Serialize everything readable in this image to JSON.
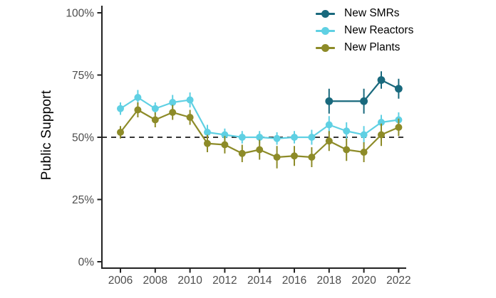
{
  "y_axis_title": "Public Support",
  "colors": {
    "axis": "#222222",
    "tick_label": "#4d4d4d",
    "reference_line": "#1a1a1a",
    "background": "#ffffff"
  },
  "chart_data": {
    "type": "line",
    "title": "",
    "xlabel": "",
    "ylabel": "Public Support",
    "ylim": [
      0,
      100
    ],
    "xlim": [
      2005,
      2023
    ],
    "grid": false,
    "legend_position": "top-right",
    "y_ticks": [
      {
        "value": 0,
        "label": "0%"
      },
      {
        "value": 25,
        "label": "25%"
      },
      {
        "value": 50,
        "label": "50%"
      },
      {
        "value": 75,
        "label": "75%"
      },
      {
        "value": 100,
        "label": "100%"
      }
    ],
    "x_ticks": [
      {
        "value": 2006,
        "label": "2006"
      },
      {
        "value": 2008,
        "label": "2008"
      },
      {
        "value": 2010,
        "label": "2010"
      },
      {
        "value": 2012,
        "label": "2012"
      },
      {
        "value": 2014,
        "label": "2014"
      },
      {
        "value": 2016,
        "label": "2016"
      },
      {
        "value": 2018,
        "label": "2018"
      },
      {
        "value": 2020,
        "label": "2020"
      },
      {
        "value": 2022,
        "label": "2022"
      }
    ],
    "reference_line": {
      "value": 50,
      "style": "dashed"
    },
    "series": [
      {
        "name": "New SMRs",
        "color": "#19697d",
        "x": [
          2018,
          2020,
          2021,
          2022
        ],
        "y": [
          64.5,
          64.5,
          73,
          69.5
        ],
        "err": [
          5,
          5,
          3.5,
          4
        ]
      },
      {
        "name": "New Reactors",
        "color": "#5fd0e3",
        "x": [
          2006,
          2007,
          2008,
          2009,
          2010,
          2011,
          2012,
          2013,
          2014,
          2015,
          2016,
          2017,
          2018,
          2019,
          2020,
          2021,
          2022
        ],
        "y": [
          61.5,
          66,
          61.5,
          64,
          65,
          52,
          51,
          50,
          50,
          49.5,
          50,
          50,
          55,
          52.5,
          51,
          56,
          57
        ],
        "err": [
          2.5,
          3,
          2.5,
          3,
          3,
          3,
          2.5,
          2.5,
          2.5,
          2.5,
          2.5,
          3,
          3.5,
          3.5,
          3.5,
          3,
          3
        ]
      },
      {
        "name": "New Plants",
        "color": "#8d8b28",
        "x": [
          2006,
          2007,
          2008,
          2009,
          2010,
          2011,
          2012,
          2013,
          2014,
          2015,
          2016,
          2017,
          2018,
          2019,
          2020,
          2021,
          2022
        ],
        "y": [
          52,
          61,
          57,
          60,
          58,
          47.5,
          47,
          43.5,
          45,
          42,
          42.5,
          42,
          48.5,
          45,
          44,
          51,
          54
        ],
        "err": [
          2.5,
          3,
          3,
          3,
          3,
          3.5,
          3.5,
          3.5,
          4,
          4.5,
          4,
          4,
          4,
          4.5,
          4,
          4.5,
          3.5
        ]
      }
    ]
  }
}
